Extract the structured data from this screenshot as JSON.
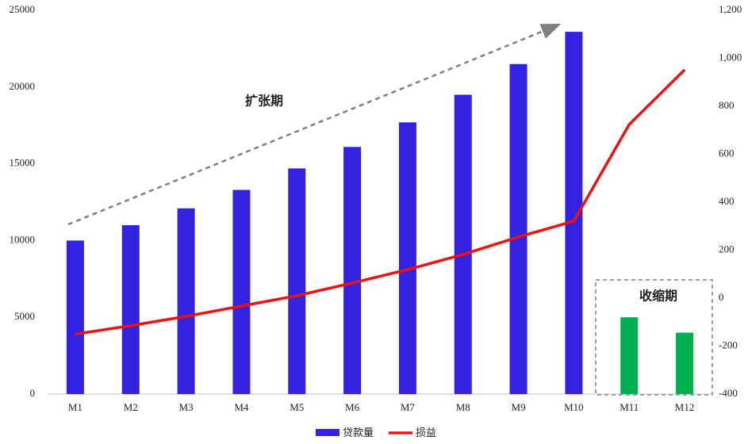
{
  "chart_data": {
    "type": "bar-line",
    "categories": [
      "M1",
      "M2",
      "M3",
      "M4",
      "M5",
      "M6",
      "M7",
      "M8",
      "M9",
      "M10",
      "M11",
      "M12"
    ],
    "series": [
      {
        "name": "贷款量",
        "type": "bar",
        "color": "#3322e0",
        "point_colors": [
          "#3322e0",
          "#3322e0",
          "#3322e0",
          "#3322e0",
          "#3322e0",
          "#3322e0",
          "#3322e0",
          "#3322e0",
          "#3322e0",
          "#3322e0",
          "#00b050",
          "#00b050"
        ],
        "values": [
          10000,
          11000,
          12100,
          13300,
          14700,
          16100,
          17700,
          19500,
          21500,
          23600,
          5000,
          4000
        ]
      },
      {
        "name": "损益",
        "type": "line",
        "color": "#ee1111",
        "axis": "y2",
        "values": [
          -150,
          -115,
          -76,
          -33,
          10,
          63,
          119,
          182,
          255,
          321,
          724,
          952
        ]
      }
    ],
    "ylim": [
      0,
      25000
    ],
    "yticks": [
      0,
      5000,
      10000,
      15000,
      20000,
      25000
    ],
    "y2lim": [
      -400,
      1200
    ],
    "y2ticks": [
      -400,
      -200,
      0,
      200,
      400,
      600,
      800,
      {
        "value": 1000,
        "label": "1,000"
      },
      {
        "value": 1200,
        "label": "1,200"
      }
    ],
    "annotations": [
      "扩张期",
      "收缩期"
    ]
  }
}
